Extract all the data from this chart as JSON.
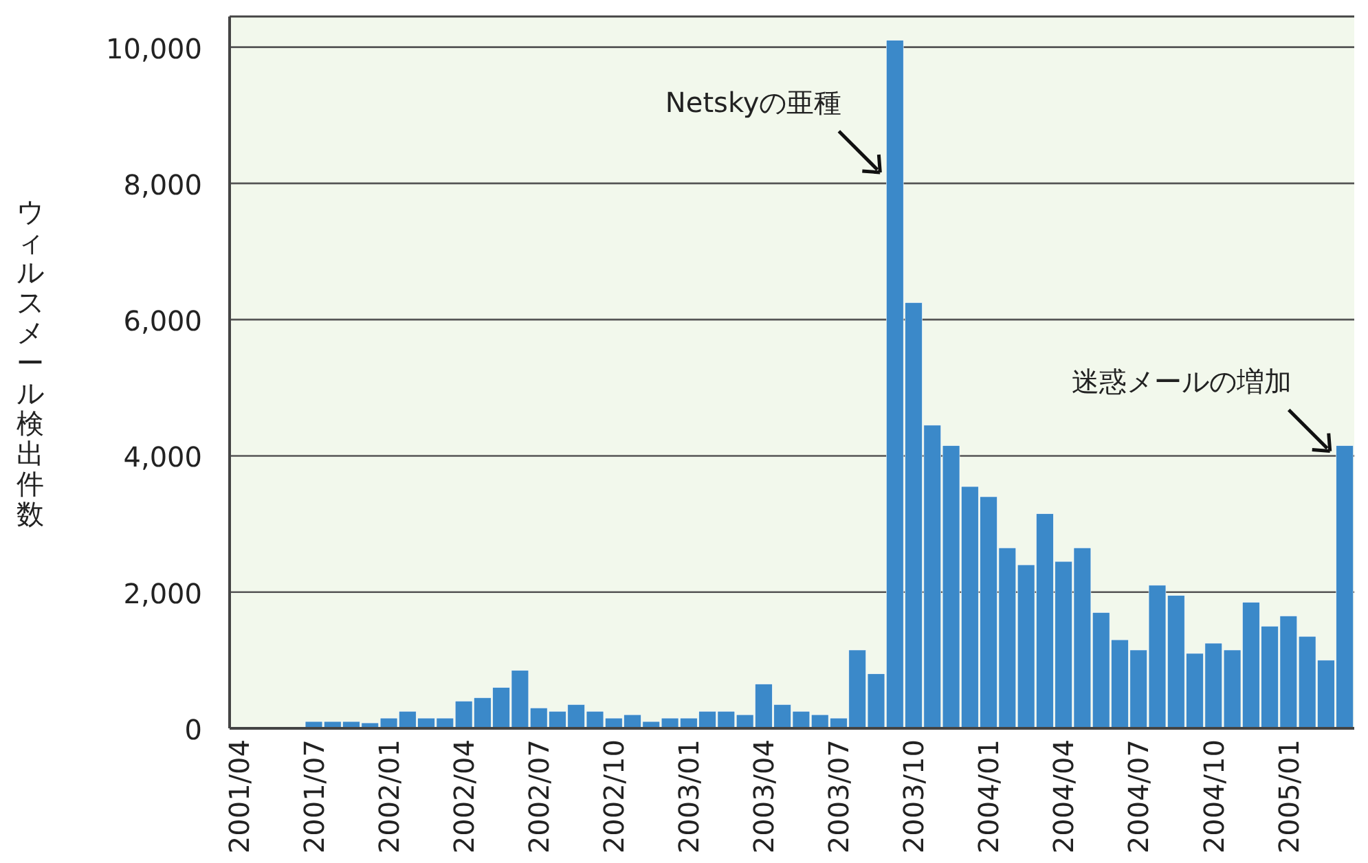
{
  "chart_data": {
    "type": "bar",
    "ylabel": "ウィルスメール検出件数",
    "categories": [
      "2001/04",
      null,
      null,
      null,
      "2001/07",
      null,
      null,
      null,
      "2002/01",
      null,
      null,
      null,
      "2002/04",
      null,
      null,
      null,
      "2002/07",
      null,
      null,
      null,
      "2002/10",
      null,
      null,
      null,
      "2003/01",
      null,
      null,
      null,
      "2003/04",
      null,
      null,
      null,
      "2003/07",
      null,
      null,
      null,
      "2003/10",
      null,
      null,
      null,
      "2004/01",
      null,
      null,
      null,
      "2004/04",
      null,
      null,
      null,
      "2004/07",
      null,
      null,
      null,
      "2004/10",
      null,
      null,
      null,
      "2005/01",
      null,
      null,
      null
    ],
    "values": [
      null,
      null,
      null,
      null,
      100,
      100,
      100,
      80,
      150,
      250,
      150,
      150,
      400,
      450,
      600,
      850,
      300,
      250,
      350,
      250,
      150,
      200,
      100,
      150,
      150,
      250,
      250,
      200,
      650,
      350,
      250,
      200,
      150,
      1150,
      800,
      10100,
      6250,
      4450,
      4150,
      3550,
      3400,
      2650,
      2400,
      3150,
      2450,
      2650,
      1700,
      1300,
      1150,
      2100,
      1950,
      1100,
      1250,
      1150,
      1850,
      1500,
      1650,
      1350,
      1000,
      4150
    ],
    "color": "#3b89c9",
    "ylim": [
      0,
      10450
    ],
    "yticks": [
      {
        "value": 0,
        "label": "0"
      },
      {
        "value": 2000,
        "label": "2,000"
      },
      {
        "value": 4000,
        "label": "4,000"
      },
      {
        "value": 6000,
        "label": "6,000"
      },
      {
        "value": 8000,
        "label": "8,000"
      },
      {
        "value": 10000,
        "label": "10,000"
      }
    ],
    "grid": "y",
    "annotations": [
      "Netskyの亜種",
      "迷惑メールの増加"
    ]
  }
}
